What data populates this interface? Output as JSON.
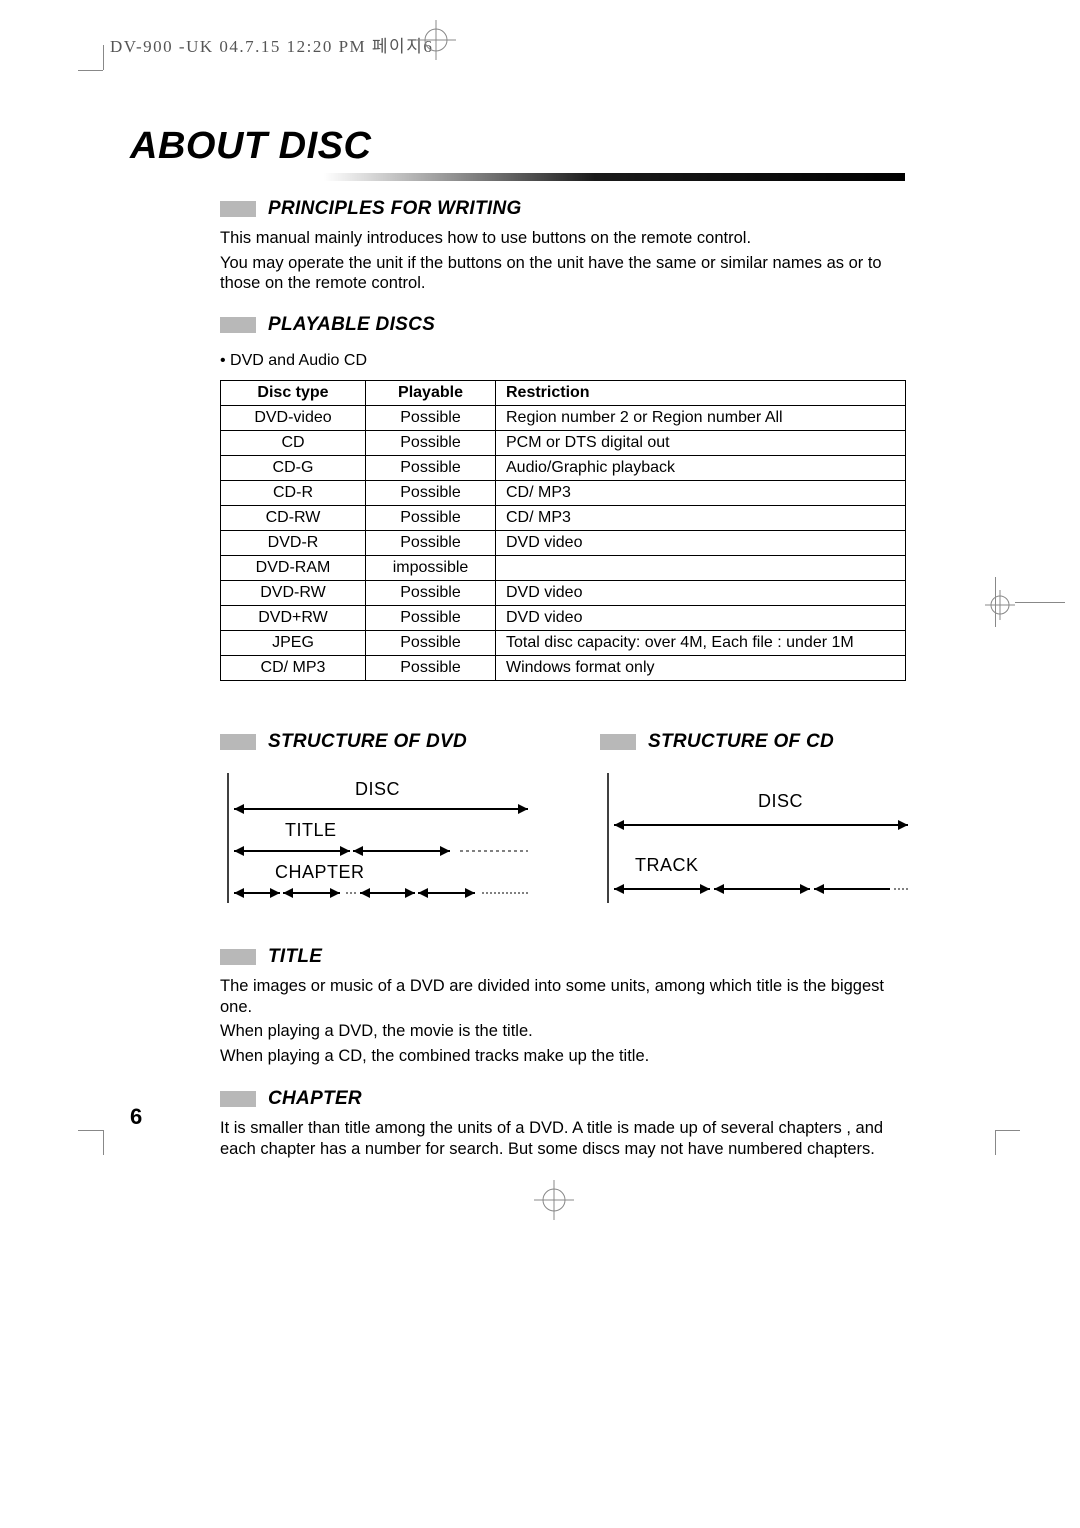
{
  "header": "DV-900 -UK  04.7.15  12:20 PM  페이지6",
  "page_number": "6",
  "main_title": "ABOUT DISC",
  "sections": {
    "principles": {
      "heading": "PRINCIPLES FOR WRITING",
      "p1": "This manual mainly introduces how to use buttons on the remote control.",
      "p2": "You may operate the unit if the buttons  on the unit  have  the  same  or  similar names as or to those on the remote control."
    },
    "playable": {
      "heading": "PLAYABLE DISCS",
      "bullet": "• DVD and  Audio CD",
      "table": {
        "columns": [
          "Disc type",
          "Playable",
          "Restriction"
        ],
        "rows": [
          [
            "DVD-video",
            "Possible",
            "Region number 2 or Region number All"
          ],
          [
            "CD",
            "Possible",
            "PCM  or  DTS digital out"
          ],
          [
            "CD-G",
            "Possible",
            "Audio/Graphic playback"
          ],
          [
            "CD-R",
            "Possible",
            "CD/ MP3"
          ],
          [
            "CD-RW",
            "Possible",
            "CD/ MP3"
          ],
          [
            "DVD-R",
            "Possible",
            "DVD video"
          ],
          [
            "DVD-RAM",
            "impossible",
            ""
          ],
          [
            "DVD-RW",
            "Possible",
            "DVD video"
          ],
          [
            "DVD+RW",
            "Possible",
            "DVD video"
          ],
          [
            "JPEG",
            "Possible",
            "Total disc capacity: over 4M, Each file : under 1M"
          ],
          [
            "CD/ MP3",
            "Possible",
            "Windows format only"
          ]
        ]
      }
    },
    "structure_dvd": {
      "heading": "STRUCTURE OF DVD",
      "l1": "DISC",
      "l2": "TITLE",
      "l3": "CHAPTER"
    },
    "structure_cd": {
      "heading": "STRUCTURE OF CD",
      "l1": "DISC",
      "l2": "TRACK"
    },
    "title": {
      "heading": "TITLE",
      "p1": "The images or music of a DVD are divided into some units, among which title is the biggest one.",
      "p2": "When playing a DVD, the movie is the title.",
      "p3": "When playing a CD, the combined tracks make up the title."
    },
    "chapter": {
      "heading": "CHAPTER",
      "p1": "It is smaller than title among the units  of  a  DVD.  A title  is  made  up of several chapters , and  each  chapter  has  a number for search.   But  some discs may not have numbered chapters."
    }
  },
  "styling": {
    "bg": "#ffffff",
    "text_color": "#000000",
    "gray_box": "#b8b8b8",
    "underline_gradient": [
      "#ffffff",
      "#1a1a1a"
    ],
    "crop_color": "#888888",
    "body_font_size": 16.5,
    "heading_font_size": 19,
    "main_title_font_size": 38
  }
}
